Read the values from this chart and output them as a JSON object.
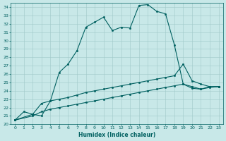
{
  "xlabel": "Humidex (Indice chaleur)",
  "ylabel": "",
  "bg_color": "#c8e8e8",
  "line_color": "#006060",
  "grid_color": "#a0c8c8",
  "xlim": [
    -0.5,
    23.5
  ],
  "ylim": [
    20,
    34.5
  ],
  "xticks": [
    0,
    1,
    2,
    3,
    4,
    5,
    6,
    7,
    8,
    9,
    10,
    11,
    12,
    13,
    14,
    15,
    16,
    17,
    18,
    19,
    20,
    21,
    22,
    23
  ],
  "yticks": [
    20,
    21,
    22,
    23,
    24,
    25,
    26,
    27,
    28,
    29,
    30,
    31,
    32,
    33,
    34
  ],
  "line1_x": [
    0,
    1,
    2,
    3,
    4,
    5,
    6,
    7,
    8,
    9,
    10,
    11,
    12,
    13,
    14,
    15,
    16,
    17,
    18,
    19,
    20,
    21,
    22,
    23
  ],
  "line1_y": [
    20.5,
    21.5,
    21.2,
    21.0,
    22.8,
    26.2,
    27.2,
    28.8,
    31.6,
    32.2,
    32.8,
    31.2,
    31.6,
    31.5,
    34.2,
    34.3,
    33.5,
    33.2,
    29.5,
    24.8,
    24.3,
    24.2,
    24.5,
    24.5
  ],
  "line2_x": [
    0,
    2,
    3,
    4,
    5,
    6,
    7,
    8,
    9,
    10,
    11,
    12,
    13,
    14,
    15,
    16,
    17,
    18,
    19,
    20,
    21,
    22,
    23
  ],
  "line2_y": [
    20.5,
    21.2,
    22.5,
    22.8,
    23.0,
    23.2,
    23.5,
    23.8,
    24.0,
    24.2,
    24.4,
    24.6,
    24.8,
    25.0,
    25.2,
    25.4,
    25.6,
    25.8,
    27.2,
    25.2,
    24.8,
    24.5,
    24.5
  ],
  "line3_x": [
    0,
    2,
    3,
    4,
    5,
    6,
    7,
    8,
    9,
    10,
    11,
    12,
    13,
    14,
    15,
    16,
    17,
    18,
    19,
    20,
    21,
    22,
    23
  ],
  "line3_y": [
    20.5,
    21.0,
    21.5,
    21.8,
    22.0,
    22.2,
    22.4,
    22.6,
    22.8,
    23.0,
    23.2,
    23.4,
    23.6,
    23.8,
    24.0,
    24.2,
    24.4,
    24.6,
    24.8,
    24.5,
    24.2,
    24.4,
    24.5
  ]
}
